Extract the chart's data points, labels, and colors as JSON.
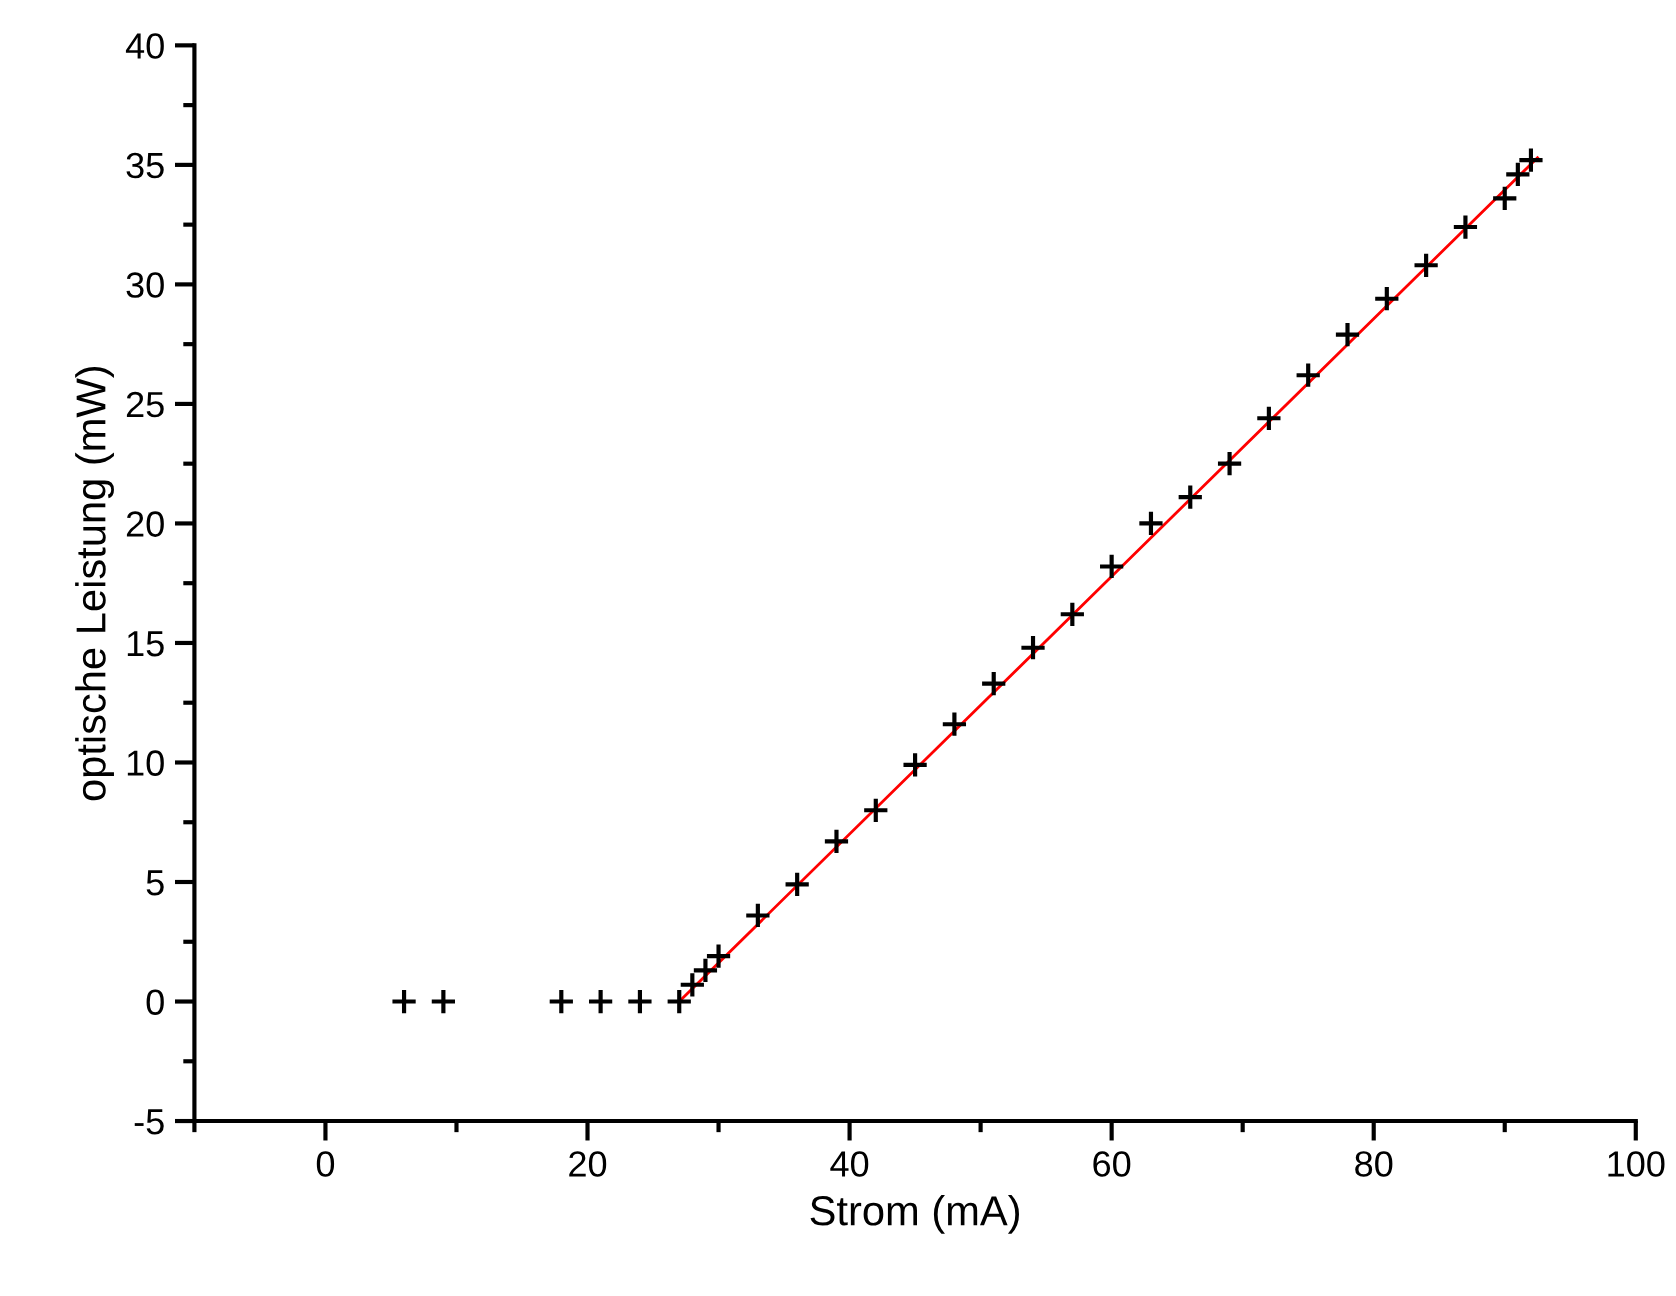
{
  "chart_data": {
    "type": "scatter",
    "xlabel": "Strom (mA)",
    "ylabel": "optische Leistung (mW)",
    "xlim": [
      -10,
      100
    ],
    "xticks": [
      0,
      20,
      40,
      60,
      80,
      100
    ],
    "ylim": [
      -5,
      40
    ],
    "yticks": [
      -5,
      0,
      5,
      10,
      15,
      20,
      25,
      30,
      35,
      40
    ],
    "grid": false,
    "series": [
      {
        "color": "#000000",
        "marker": "cross",
        "x": [
          6,
          9,
          18,
          21,
          24,
          27,
          28,
          29,
          30,
          33,
          36,
          39,
          42,
          45,
          48,
          51,
          54,
          57,
          60,
          63,
          66,
          69,
          72,
          75,
          78,
          81,
          84,
          87,
          90,
          91,
          92
        ],
        "values": [
          0,
          0,
          0,
          0,
          0,
          0,
          0.7,
          1.3,
          1.9,
          3.6,
          4.9,
          6.7,
          8.0,
          9.9,
          11.6,
          13.3,
          14.8,
          16.2,
          18.2,
          20.0,
          21.1,
          22.5,
          24.4,
          26.2,
          27.9,
          29.4,
          30.8,
          32.4,
          33.6,
          34.6,
          35.2
        ]
      },
      {
        "type": "line",
        "color": "#ff0000",
        "line_style": "solid",
        "x": [
          27,
          92.5
        ],
        "values": [
          0,
          35.3
        ]
      }
    ]
  }
}
